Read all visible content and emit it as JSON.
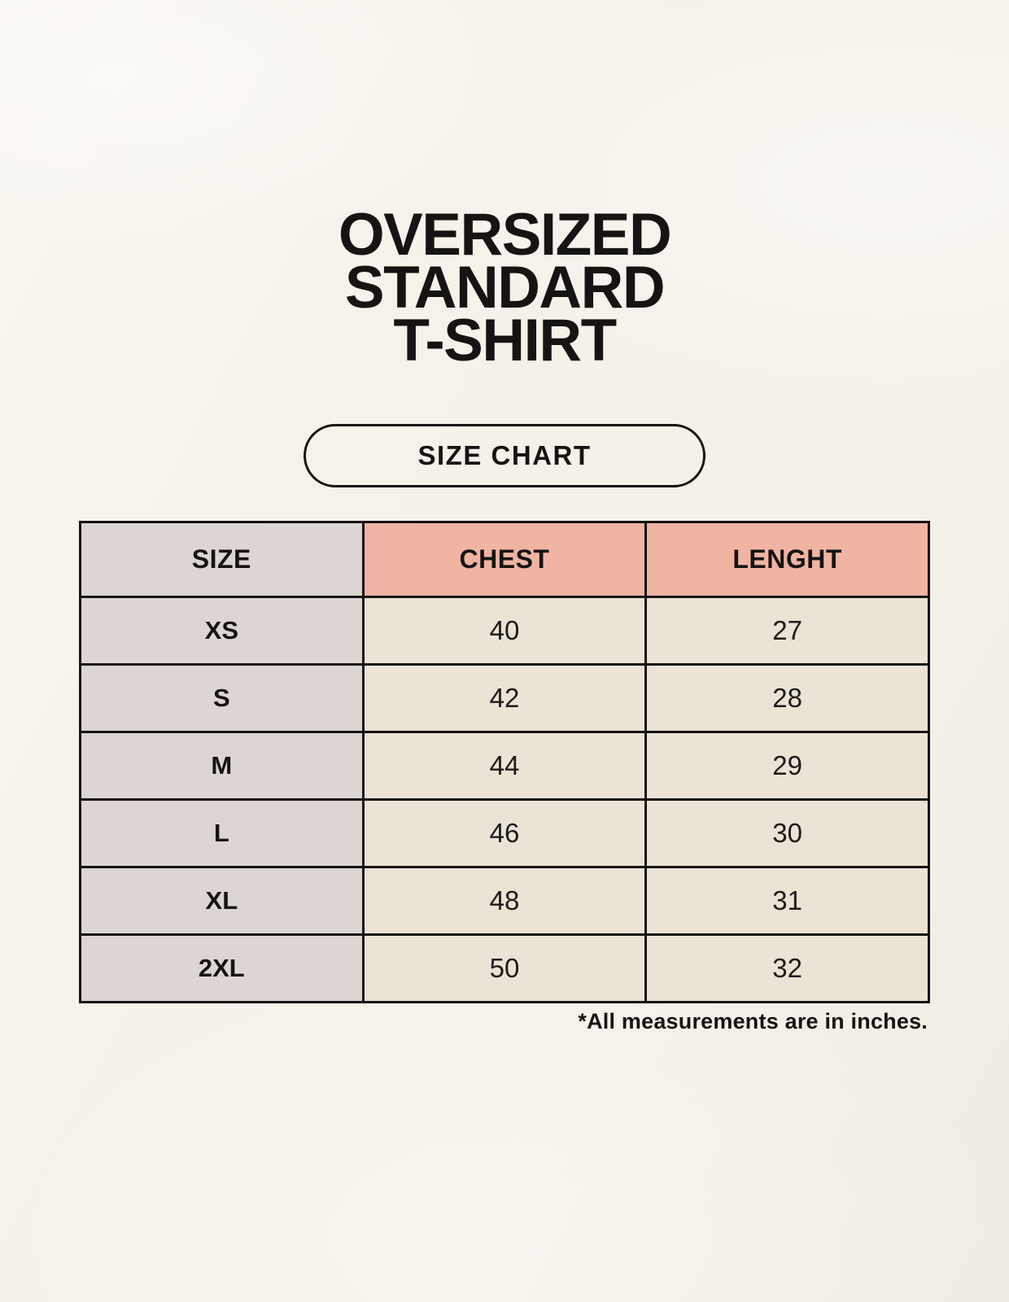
{
  "header": {
    "title_lines": [
      "OVERSIZED",
      "STANDARD",
      "T-SHIRT"
    ],
    "badge_label": "SIZE CHART"
  },
  "chart_data": {
    "type": "table",
    "title": "OVERSIZED STANDARD T-SHIRT",
    "subtitle": "SIZE CHART",
    "columns": [
      "SIZE",
      "CHEST",
      "LENGHT"
    ],
    "rows": [
      {
        "size": "XS",
        "chest": "40",
        "lenght": "27"
      },
      {
        "size": "S",
        "chest": "42",
        "lenght": "28"
      },
      {
        "size": "M",
        "chest": "44",
        "lenght": "29"
      },
      {
        "size": "L",
        "chest": "46",
        "lenght": "30"
      },
      {
        "size": "XL",
        "chest": "48",
        "lenght": "31"
      },
      {
        "size": "2XL",
        "chest": "50",
        "lenght": "32"
      }
    ],
    "units": "inches",
    "footnote": "*All measurements are in inches."
  },
  "footnote": "*All measurements are in inches.",
  "colors": {
    "page-bg": "#f5f1e9",
    "page-bg-light": "#faf7f0",
    "page-bg-dark": "#f0ece3",
    "size-col-bg": "#ddd5d1",
    "accent-header-bg": "#f0b4a3",
    "cell-bg": "#eae3d6",
    "line": "#161412",
    "ink": "#161412"
  }
}
